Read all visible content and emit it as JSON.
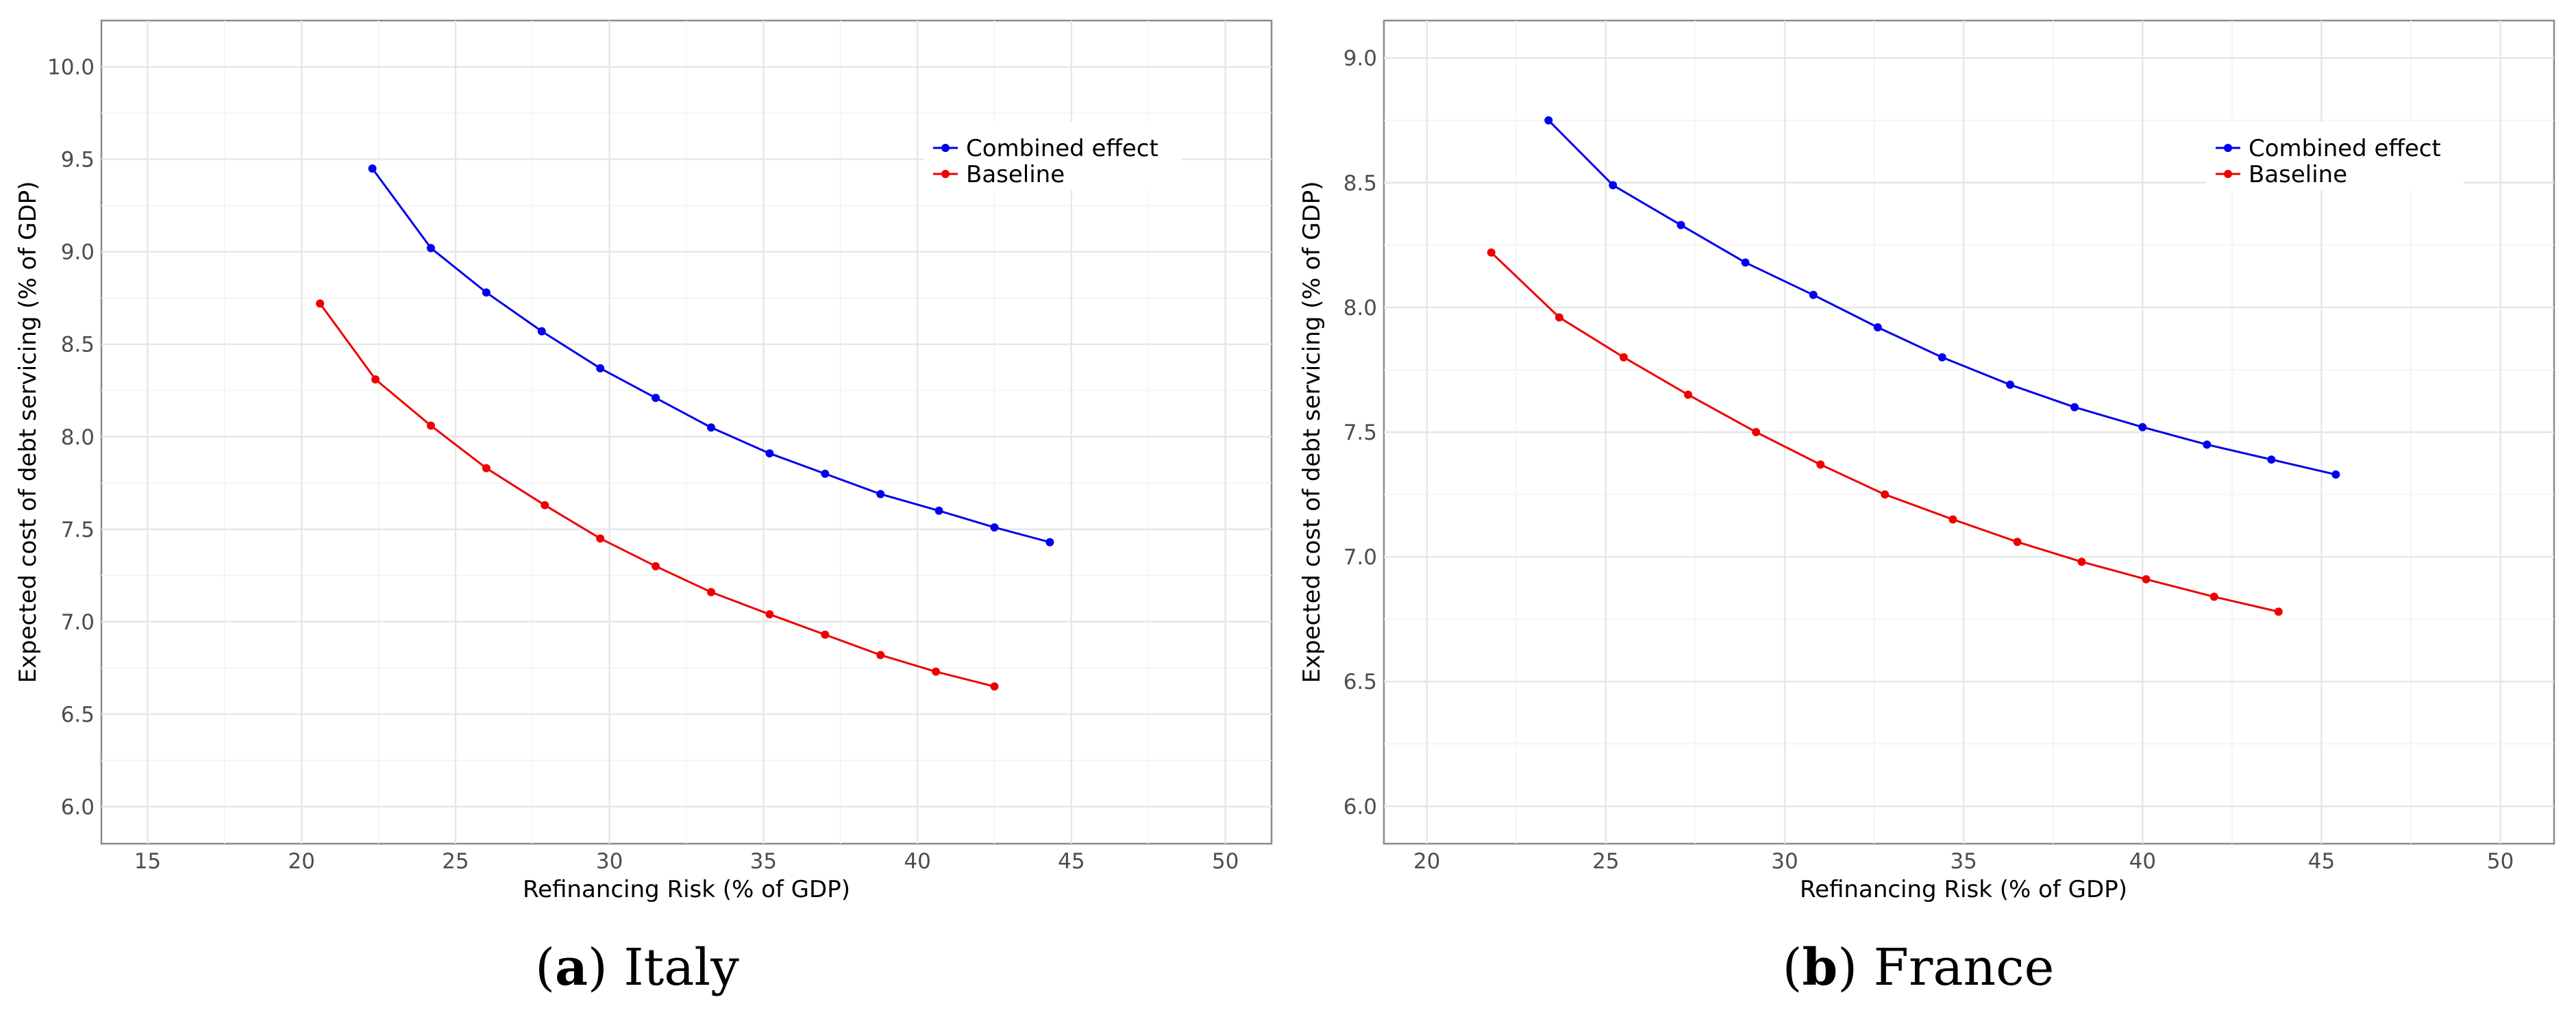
{
  "chart_data": [
    {
      "type": "line",
      "caption_letter": "a",
      "caption_text": "Italy",
      "xlabel": "Refinancing Risk (% of GDP)",
      "ylabel": "Expected cost of debt servicing (% of GDP)",
      "xlim": [
        13.5,
        51.5
      ],
      "ylim": [
        5.8,
        10.25
      ],
      "xticks": [
        15,
        20,
        25,
        30,
        35,
        40,
        45,
        50
      ],
      "yticks": [
        6.0,
        6.5,
        7.0,
        7.5,
        8.0,
        8.5,
        9.0,
        9.5,
        10.0
      ],
      "legend_position": "top-right",
      "series": [
        {
          "name": "Combined effect",
          "color": "#0000ee",
          "points": [
            [
              22.3,
              9.45
            ],
            [
              24.2,
              9.02
            ],
            [
              26.0,
              8.78
            ],
            [
              27.8,
              8.57
            ],
            [
              29.7,
              8.37
            ],
            [
              31.5,
              8.21
            ],
            [
              33.3,
              8.05
            ],
            [
              35.2,
              7.91
            ],
            [
              37.0,
              7.8
            ],
            [
              38.8,
              7.69
            ],
            [
              40.7,
              7.6
            ],
            [
              42.5,
              7.51
            ],
            [
              44.3,
              7.43
            ]
          ]
        },
        {
          "name": "Baseline",
          "color": "#ee0000",
          "points": [
            [
              20.6,
              8.72
            ],
            [
              22.4,
              8.31
            ],
            [
              24.2,
              8.06
            ],
            [
              26.0,
              7.83
            ],
            [
              27.9,
              7.63
            ],
            [
              29.7,
              7.45
            ],
            [
              31.5,
              7.3
            ],
            [
              33.3,
              7.16
            ],
            [
              35.2,
              7.04
            ],
            [
              37.0,
              6.93
            ],
            [
              38.8,
              6.82
            ],
            [
              40.6,
              6.73
            ],
            [
              42.5,
              6.65
            ]
          ]
        }
      ]
    },
    {
      "type": "line",
      "caption_letter": "b",
      "caption_text": "France",
      "xlabel": "Refinancing Risk (% of GDP)",
      "ylabel": "Expected cost of debt servicing (% of GDP)",
      "xlim": [
        18.8,
        51.5
      ],
      "ylim": [
        5.85,
        9.15
      ],
      "xticks": [
        20,
        25,
        30,
        35,
        40,
        45,
        50
      ],
      "yticks": [
        6.0,
        6.5,
        7.0,
        7.5,
        8.0,
        8.5,
        9.0
      ],
      "legend_position": "top-right",
      "series": [
        {
          "name": "Combined effect",
          "color": "#0000ee",
          "points": [
            [
              23.4,
              8.75
            ],
            [
              25.2,
              8.49
            ],
            [
              27.1,
              8.33
            ],
            [
              28.9,
              8.18
            ],
            [
              30.8,
              8.05
            ],
            [
              32.6,
              7.92
            ],
            [
              34.4,
              7.8
            ],
            [
              36.3,
              7.69
            ],
            [
              38.1,
              7.6
            ],
            [
              40.0,
              7.52
            ],
            [
              41.8,
              7.45
            ],
            [
              43.6,
              7.39
            ],
            [
              45.4,
              7.33
            ]
          ]
        },
        {
          "name": "Baseline",
          "color": "#ee0000",
          "points": [
            [
              21.8,
              8.22
            ],
            [
              23.7,
              7.96
            ],
            [
              25.5,
              7.8
            ],
            [
              27.3,
              7.65
            ],
            [
              29.2,
              7.5
            ],
            [
              31.0,
              7.37
            ],
            [
              32.8,
              7.25
            ],
            [
              34.7,
              7.15
            ],
            [
              36.5,
              7.06
            ],
            [
              38.3,
              6.98
            ],
            [
              40.1,
              6.91
            ],
            [
              42.0,
              6.84
            ],
            [
              43.8,
              6.78
            ]
          ]
        }
      ]
    }
  ]
}
